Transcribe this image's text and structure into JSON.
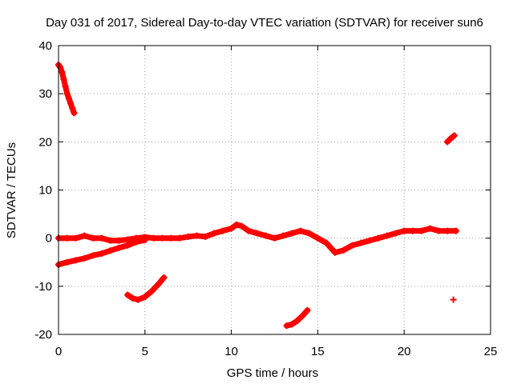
{
  "chart_data": {
    "type": "scatter",
    "title": "Day 031 of 2017, Sidereal Day-to-day VTEC variation (SDTVAR) for receiver sun6",
    "xlabel": "GPS time / hours",
    "ylabel": "SDTVAR / TECUs",
    "xlim": [
      0,
      25
    ],
    "ylim": [
      -20,
      40
    ],
    "x_ticks": [
      "0",
      "5",
      "10",
      "15",
      "20",
      "25"
    ],
    "y_ticks": [
      "-20",
      "-10",
      "0",
      "10",
      "20",
      "30",
      "40"
    ],
    "grid": true,
    "marker": "plus",
    "series_color": "#ff0000",
    "series": [
      {
        "name": "arc-early-high",
        "x": [
          0.0,
          0.1,
          0.2,
          0.3,
          0.4,
          0.5,
          0.6,
          0.7,
          0.8,
          0.9
        ],
        "y": [
          36,
          35.5,
          34.5,
          33,
          31.5,
          30,
          29,
          28,
          27,
          26
        ]
      },
      {
        "name": "arc-rising-low",
        "x": [
          0.0,
          0.5,
          1.0,
          1.5,
          2.0,
          2.5,
          3.0,
          3.5,
          4.0,
          4.5,
          5.0
        ],
        "y": [
          -5.5,
          -5,
          -4.6,
          -4.2,
          -3.6,
          -3.2,
          -2.6,
          -2,
          -1.5,
          -0.8,
          -0.4
        ]
      },
      {
        "name": "arc-main-band",
        "x": [
          0,
          0.5,
          1,
          1.5,
          2,
          2.5,
          3,
          3.5,
          4,
          4.5,
          5,
          5.5,
          6,
          6.5,
          7,
          7.5,
          8,
          8.5,
          9,
          9.5,
          10,
          10.3,
          10.6,
          11,
          11.5,
          12,
          12.5,
          13,
          13.5,
          14,
          14.5,
          15,
          15.5,
          16,
          16.5,
          17,
          17.5,
          18,
          18.5,
          19,
          19.5,
          20,
          20.5,
          21,
          21.5,
          22,
          22.5,
          23
        ],
        "y": [
          0,
          0,
          0,
          0.5,
          0,
          0,
          -0.5,
          -0.5,
          -0.3,
          0,
          0.2,
          0,
          0,
          0,
          0,
          0.3,
          0.5,
          0.3,
          1,
          1.5,
          2,
          2.8,
          2.5,
          1.5,
          1,
          0.5,
          0,
          0.5,
          1,
          1.5,
          1,
          0,
          -1,
          -3,
          -2.5,
          -1.5,
          -1,
          -0.5,
          0,
          0.5,
          1,
          1.5,
          1.5,
          1.5,
          2,
          1.5,
          1.5,
          1.5
        ]
      },
      {
        "name": "arc-mid-low",
        "x": [
          4.0,
          4.3,
          4.6,
          5.0,
          5.4,
          5.8,
          6.1
        ],
        "y": [
          -11.8,
          -12.5,
          -12.8,
          -12.2,
          -11,
          -9.5,
          -8.2
        ]
      },
      {
        "name": "arc-late-low",
        "x": [
          13.2,
          13.5,
          13.8,
          14.1,
          14.4
        ],
        "y": [
          -18.2,
          -17.9,
          -17.2,
          -16.2,
          -15
        ]
      },
      {
        "name": "arc-late-high",
        "x": [
          22.5,
          22.7,
          22.9
        ],
        "y": [
          20,
          20.7,
          21.3
        ]
      },
      {
        "name": "late-single",
        "x": [
          22.85
        ],
        "y": [
          -12.8
        ]
      }
    ]
  }
}
